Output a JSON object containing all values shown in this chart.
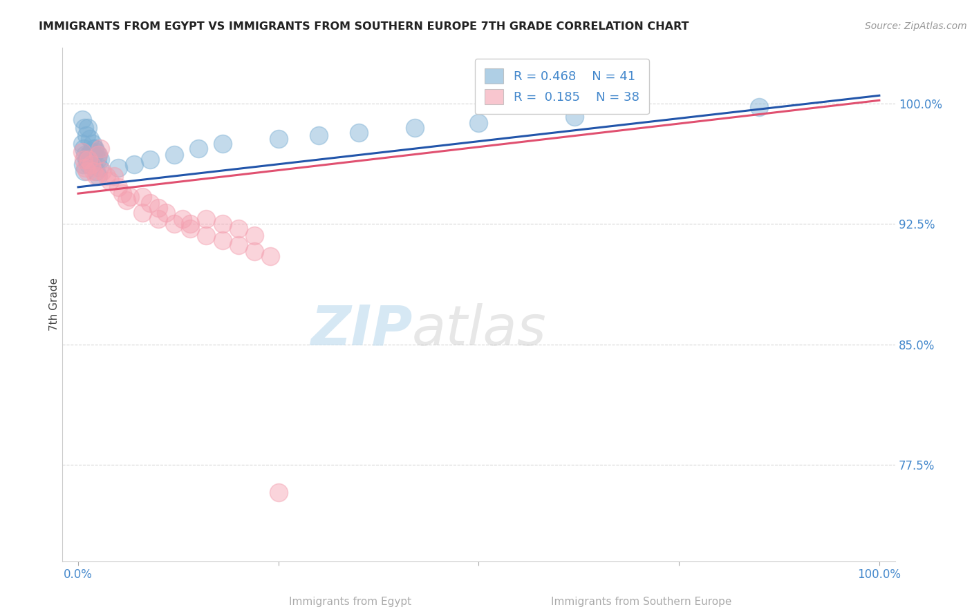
{
  "title": "IMMIGRANTS FROM EGYPT VS IMMIGRANTS FROM SOUTHERN EUROPE 7TH GRADE CORRELATION CHART",
  "source": "Source: ZipAtlas.com",
  "xlabel_blue": "Immigrants from Egypt",
  "xlabel_pink": "Immigrants from Southern Europe",
  "ylabel": "7th Grade",
  "xlim": [
    -0.02,
    1.02
  ],
  "ylim": [
    0.715,
    1.035
  ],
  "yticks": [
    0.775,
    0.85,
    0.925,
    1.0
  ],
  "ytick_labels": [
    "77.5%",
    "85.0%",
    "92.5%",
    "100.0%"
  ],
  "xtick_positions": [
    0.0,
    0.25,
    0.5,
    0.75,
    1.0
  ],
  "xtick_labels_show": [
    "0.0%",
    "",
    "",
    "",
    "100.0%"
  ],
  "legend_blue_r": "0.468",
  "legend_blue_n": "41",
  "legend_pink_r": "0.185",
  "legend_pink_n": "38",
  "blue_color": "#7bafd4",
  "pink_color": "#f4a0b0",
  "blue_line_color": "#2255aa",
  "pink_line_color": "#e05070",
  "blue_points_x": [
    0.005,
    0.008,
    0.01,
    0.012,
    0.015,
    0.018,
    0.02,
    0.022,
    0.025,
    0.028,
    0.005,
    0.007,
    0.009,
    0.011,
    0.013,
    0.016,
    0.019,
    0.021,
    0.024,
    0.027,
    0.006,
    0.008,
    0.01,
    0.013,
    0.016,
    0.019,
    0.022,
    0.025,
    0.05,
    0.07,
    0.09,
    0.12,
    0.15,
    0.18,
    0.25,
    0.3,
    0.35,
    0.42,
    0.5,
    0.62,
    0.85
  ],
  "blue_points_y": [
    0.99,
    0.985,
    0.98,
    0.985,
    0.978,
    0.975,
    0.972,
    0.97,
    0.968,
    0.965,
    0.975,
    0.972,
    0.968,
    0.965,
    0.962,
    0.97,
    0.968,
    0.972,
    0.965,
    0.96,
    0.962,
    0.958,
    0.965,
    0.968,
    0.97,
    0.962,
    0.958,
    0.955,
    0.96,
    0.962,
    0.965,
    0.968,
    0.972,
    0.975,
    0.978,
    0.98,
    0.982,
    0.985,
    0.988,
    0.992,
    0.998
  ],
  "pink_points_x": [
    0.005,
    0.007,
    0.009,
    0.011,
    0.013,
    0.016,
    0.019,
    0.022,
    0.025,
    0.028,
    0.03,
    0.035,
    0.04,
    0.045,
    0.05,
    0.055,
    0.06,
    0.065,
    0.08,
    0.09,
    0.1,
    0.11,
    0.13,
    0.14,
    0.16,
    0.18,
    0.2,
    0.22,
    0.08,
    0.1,
    0.12,
    0.14,
    0.16,
    0.18,
    0.2,
    0.22,
    0.24,
    0.25
  ],
  "pink_points_y": [
    0.97,
    0.965,
    0.96,
    0.958,
    0.965,
    0.962,
    0.958,
    0.955,
    0.968,
    0.972,
    0.958,
    0.955,
    0.952,
    0.955,
    0.948,
    0.944,
    0.94,
    0.942,
    0.942,
    0.938,
    0.935,
    0.932,
    0.928,
    0.925,
    0.928,
    0.925,
    0.922,
    0.918,
    0.932,
    0.928,
    0.925,
    0.922,
    0.918,
    0.915,
    0.912,
    0.908,
    0.905,
    0.758
  ],
  "blue_line_x": [
    0.0,
    1.0
  ],
  "blue_line_y": [
    0.948,
    1.005
  ],
  "pink_line_x": [
    0.0,
    1.0
  ],
  "pink_line_y": [
    0.944,
    1.002
  ]
}
